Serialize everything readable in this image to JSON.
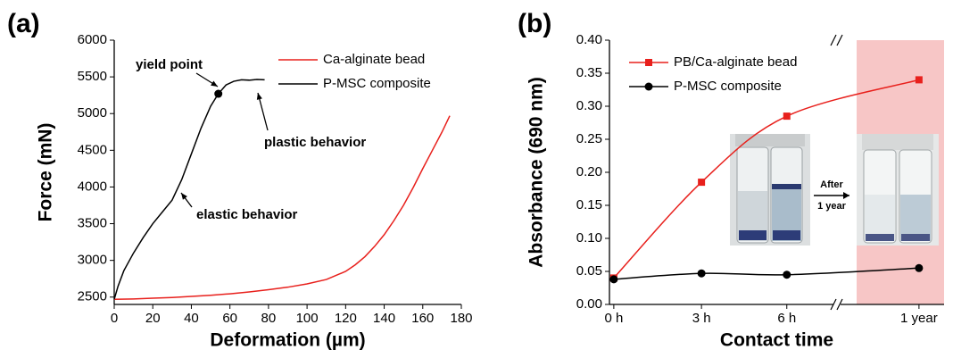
{
  "chart_data": [
    {
      "type": "line",
      "panel": "(a)",
      "x_label": "Deformation (µm)",
      "y_label": "Force (mN)",
      "xlim": [
        0,
        180
      ],
      "xticks": [
        0,
        20,
        40,
        60,
        80,
        100,
        120,
        140,
        160,
        180
      ],
      "ylim": [
        2400,
        6000
      ],
      "yticks": [
        2500,
        3000,
        3500,
        4000,
        4500,
        5000,
        5500,
        6000
      ],
      "legend": "upper right",
      "series": [
        {
          "name": "Ca-alginate bead",
          "color": "#e8201c",
          "x": [
            0,
            10,
            20,
            30,
            40,
            50,
            60,
            70,
            80,
            90,
            100,
            110,
            120,
            125,
            130,
            135,
            140,
            145,
            150,
            155,
            160,
            165,
            170,
            174
          ],
          "values": [
            2470,
            2475,
            2485,
            2495,
            2510,
            2525,
            2545,
            2570,
            2600,
            2635,
            2680,
            2740,
            2850,
            2940,
            3050,
            3190,
            3350,
            3540,
            3750,
            3990,
            4250,
            4500,
            4750,
            4970
          ]
        },
        {
          "name": "P-MSC composite",
          "color": "#000000",
          "x": [
            0,
            2,
            5,
            10,
            15,
            20,
            25,
            30,
            35,
            40,
            45,
            50,
            54,
            58,
            62,
            66,
            70,
            74,
            78
          ],
          "values": [
            2470,
            2650,
            2860,
            3100,
            3310,
            3500,
            3660,
            3820,
            4100,
            4450,
            4800,
            5100,
            5270,
            5390,
            5440,
            5460,
            5455,
            5465,
            5460
          ]
        }
      ],
      "annotations": [
        "yield point",
        "plastic behavior",
        "elastic behavior"
      ]
    },
    {
      "type": "line",
      "panel": "(b)",
      "x_label": "Contact time",
      "y_label": "Absorbance (690 nm)",
      "categories": [
        "0 h",
        "3 h",
        "6 h",
        "1 year"
      ],
      "ylim": [
        0,
        0.4
      ],
      "yticks": [
        {
          "value": 0,
          "label": "0.00"
        },
        {
          "value": 0.05,
          "label": "0.05"
        },
        {
          "value": 0.1,
          "label": "0.10"
        },
        {
          "value": 0.15,
          "label": "0.15"
        },
        {
          "value": 0.2,
          "label": "0.20"
        },
        {
          "value": 0.25,
          "label": "0.25"
        },
        {
          "value": 0.3,
          "label": "0.30"
        },
        {
          "value": 0.35,
          "label": "0.35"
        },
        {
          "value": 0.4,
          "label": "0.40"
        }
      ],
      "legend": "upper left",
      "series": [
        {
          "name": "PB/Ca-alginate bead",
          "color": "#e8201c",
          "marker": "square",
          "values": [
            0.04,
            0.185,
            0.285,
            0.34
          ]
        },
        {
          "name": "P-MSC composite",
          "color": "#000000",
          "marker": "circle",
          "values": [
            0.038,
            0.047,
            0.045,
            0.055
          ]
        }
      ],
      "annotations": [
        "After",
        "1 year"
      ]
    }
  ]
}
